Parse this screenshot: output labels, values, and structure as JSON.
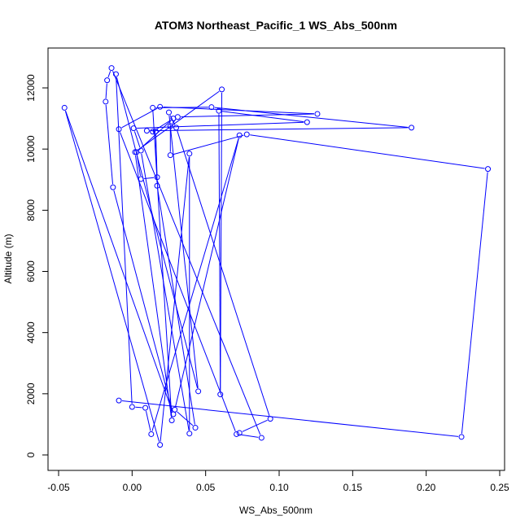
{
  "chart_data": {
    "type": "line",
    "title": "ATOM3 Northeast_Pacific_1 WS_Abs_500nm",
    "xlabel": "WS_Abs_500nm",
    "ylabel": "Altitude (m)",
    "xlim": [
      -0.05,
      0.25
    ],
    "ylim": [
      0,
      12000
    ],
    "xticks": [
      -0.05,
      0.0,
      0.05,
      0.1,
      0.15,
      0.2,
      0.25
    ],
    "xtick_labels": [
      "-0.05",
      "0.00",
      "0.05",
      "0.10",
      "0.15",
      "0.20",
      "0.25"
    ],
    "yticks": [
      0,
      2000,
      4000,
      6000,
      8000,
      10000,
      12000
    ],
    "ytick_labels": [
      "0",
      "2000",
      "4000",
      "6000",
      "8000",
      "10000",
      "12000"
    ],
    "grid": false,
    "series_color": "#0000ff",
    "marker": "open-circle",
    "series": [
      {
        "points": [
          [
            -0.009,
            1780
          ],
          [
            0.224,
            590
          ],
          [
            0.242,
            9350
          ],
          [
            0.078,
            10480
          ],
          [
            0.026,
            9800
          ],
          [
            0.026,
            10750
          ],
          [
            0.031,
            11050
          ],
          [
            0.126,
            11150
          ],
          [
            0.019,
            11380
          ],
          [
            -0.009,
            10650
          ],
          [
            0.071,
            680
          ],
          [
            0.088,
            560
          ],
          [
            -0.014,
            12650
          ],
          [
            -0.017,
            12250
          ],
          [
            -0.018,
            11550
          ],
          [
            -0.013,
            8750
          ],
          [
            0.028,
            1330
          ],
          [
            -0.046,
            11350
          ],
          [
            0.019,
            330
          ],
          [
            0.039,
            9850
          ],
          [
            0.039,
            700
          ],
          [
            0.006,
            9950
          ],
          [
            0.001,
            10680
          ],
          [
            0.119,
            10880
          ],
          [
            0.059,
            11250
          ],
          [
            0.06,
            1980
          ],
          [
            0.061,
            11950
          ],
          [
            0.002,
            9900
          ],
          [
            0.027,
            1130
          ],
          [
            0.014,
            11350
          ],
          [
            0.054,
            11370
          ],
          [
            0.19,
            10700
          ],
          [
            0.01,
            10600
          ],
          [
            0.014,
            10570
          ],
          [
            0.028,
            11000
          ],
          [
            0.003,
            9900
          ],
          [
            0.006,
            9020
          ],
          [
            0.017,
            9080
          ],
          [
            0.016,
            10580
          ],
          [
            0.017,
            8800
          ],
          [
            0.043,
            890
          ],
          [
            0.029,
            1480
          ],
          [
            0.073,
            10450
          ],
          [
            0.013,
            680
          ],
          [
            0.009,
            1540
          ],
          [
            0.0,
            1570
          ],
          [
            -0.011,
            12450
          ],
          [
            0.045,
            2080
          ],
          [
            0.025,
            11200
          ],
          [
            0.03,
            10700
          ],
          [
            0.094,
            1180
          ],
          [
            0.073,
            720
          ]
        ]
      }
    ]
  }
}
